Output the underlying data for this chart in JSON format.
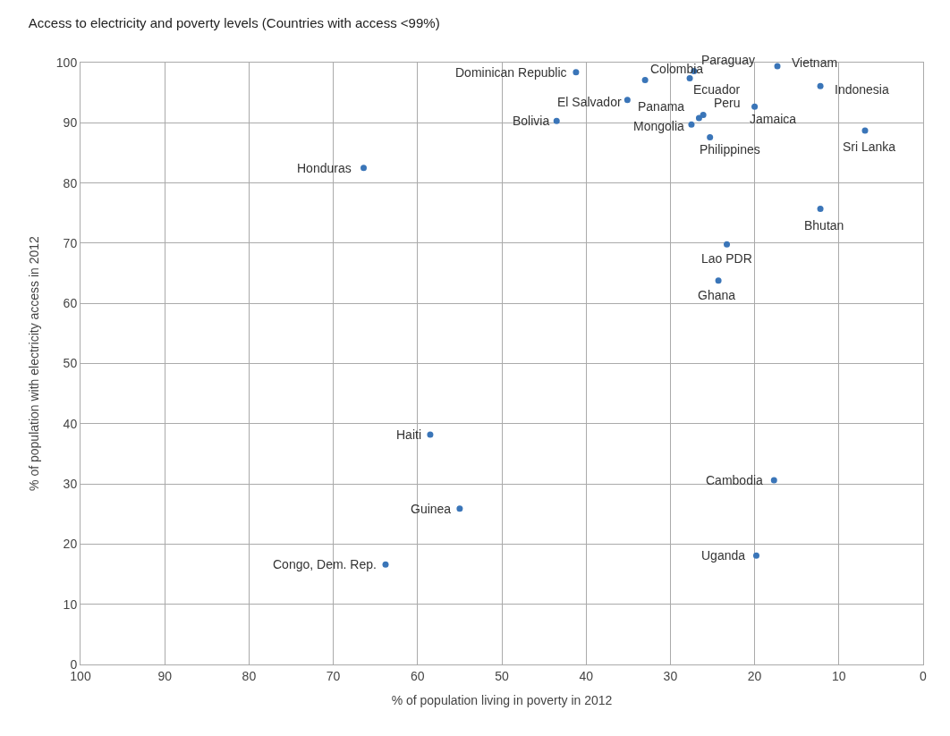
{
  "chart_data": {
    "type": "scatter",
    "title": "Access to electricity and poverty levels (Countries with access <99%)",
    "xlabel": "% of population living in poverty in 2012",
    "ylabel": "% of population with electricity access in 2012",
    "x": [
      41.2,
      33.0,
      27.2,
      27.7,
      17.3,
      12.2,
      35.1,
      26.6,
      26.1,
      43.5,
      20.0,
      27.5,
      25.3,
      6.9,
      66.4,
      12.2,
      23.3,
      24.3,
      58.5,
      17.7,
      55.0,
      19.8,
      63.8
    ],
    "values": [
      98.4,
      97.1,
      98.6,
      97.4,
      99.4,
      96.1,
      93.8,
      90.8,
      91.3,
      90.3,
      92.7,
      89.7,
      87.6,
      88.7,
      82.5,
      75.7,
      69.8,
      63.8,
      38.2,
      30.6,
      25.9,
      18.1,
      16.6
    ],
    "color": "#3a75b8",
    "marker": "circle",
    "grid": true,
    "xlim": [
      100,
      0
    ],
    "xticks": [
      100,
      90,
      80,
      70,
      60,
      50,
      40,
      30,
      20,
      10,
      0
    ],
    "ylim": [
      0,
      100
    ],
    "yticks": [
      0,
      10,
      20,
      30,
      40,
      50,
      60,
      70,
      80,
      90,
      100
    ],
    "annotations": [
      {
        "text": "Dominican Republic",
        "x": 41.2,
        "y": 98.4
      },
      {
        "text": "Colombia",
        "x": 33.0,
        "y": 97.1
      },
      {
        "text": "Paraguay",
        "x": 27.2,
        "y": 98.6
      },
      {
        "text": "Ecuador",
        "x": 27.7,
        "y": 97.4
      },
      {
        "text": "Vietnam",
        "x": 17.3,
        "y": 99.4
      },
      {
        "text": "Indonesia",
        "x": 12.2,
        "y": 96.1
      },
      {
        "text": "El Salvador",
        "x": 35.1,
        "y": 93.8
      },
      {
        "text": "Panama",
        "x": 26.6,
        "y": 90.8
      },
      {
        "text": "Peru",
        "x": 26.1,
        "y": 91.3
      },
      {
        "text": "Bolivia",
        "x": 43.5,
        "y": 90.3
      },
      {
        "text": "Jamaica",
        "x": 20.0,
        "y": 92.7
      },
      {
        "text": "Mongolia",
        "x": 27.5,
        "y": 89.7
      },
      {
        "text": "Philippines",
        "x": 25.3,
        "y": 87.6
      },
      {
        "text": "Sri Lanka",
        "x": 6.9,
        "y": 88.7
      },
      {
        "text": "Honduras",
        "x": 66.4,
        "y": 82.5
      },
      {
        "text": "Bhutan",
        "x": 12.2,
        "y": 75.7
      },
      {
        "text": "Lao PDR",
        "x": 23.3,
        "y": 69.8
      },
      {
        "text": "Ghana",
        "x": 24.3,
        "y": 63.8
      },
      {
        "text": "Haiti",
        "x": 58.5,
        "y": 38.2
      },
      {
        "text": "Cambodia",
        "x": 17.7,
        "y": 30.6
      },
      {
        "text": "Guinea",
        "x": 55.0,
        "y": 25.9
      },
      {
        "text": "Uganda",
        "x": 19.8,
        "y": 18.1
      },
      {
        "text": "Congo, Dem. Rep.",
        "x": 63.8,
        "y": 16.6
      }
    ]
  }
}
